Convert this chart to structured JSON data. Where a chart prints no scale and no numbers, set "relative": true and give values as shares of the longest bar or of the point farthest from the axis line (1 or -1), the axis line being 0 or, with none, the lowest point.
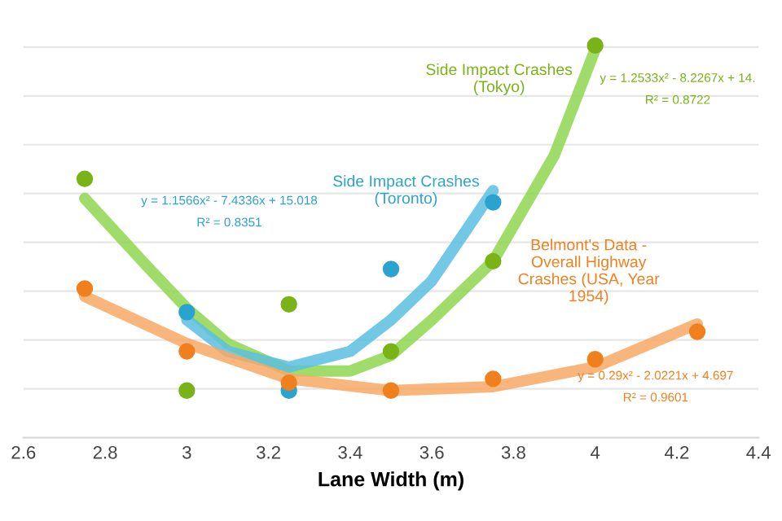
{
  "chart_data": {
    "type": "scatter",
    "relative": true,
    "xlabel": "Lane Width (m)",
    "xlim": [
      2.6,
      4.4
    ],
    "xticks": [
      2.6,
      2.8,
      3,
      3.2,
      3.4,
      3.6,
      3.8,
      4,
      4.2,
      4.4
    ],
    "grid": "y",
    "legend": false,
    "tick_labels": "x",
    "marker": "circle",
    "series": [
      {
        "name": "Side Impact Crashes\n(Tokyo)",
        "color": "#7ab317",
        "x": [
          2.75,
          3,
          3.25,
          3.5,
          3.75,
          4
        ],
        "values": [
          0.66,
          0.12,
          0.34,
          0.22,
          0.45,
          1.0
        ]
      },
      {
        "name": "Side Impact Crashes\n(Toronto)",
        "color": "#2ba3cf",
        "x": [
          3,
          3.25,
          3.5,
          3.75
        ],
        "values": [
          0.32,
          0.12,
          0.43,
          0.6
        ]
      },
      {
        "name": "Belmont's Data -\nOverall Highway\nCrashes (USA, Year\n1954)",
        "color": "#f07f1e",
        "x": [
          2.75,
          3,
          3.25,
          3.5,
          3.75,
          4,
          4.25
        ],
        "values": [
          0.38,
          0.22,
          0.14,
          0.12,
          0.15,
          0.2,
          0.27
        ]
      },
      {
        "type": "line",
        "color": "#8ed64f",
        "marker": "none",
        "x": [
          2.75,
          2.9,
          3.0,
          3.1,
          3.25,
          3.4,
          3.5,
          3.6,
          3.75,
          3.9,
          4.0
        ],
        "values": [
          0.61,
          0.44,
          0.33,
          0.24,
          0.17,
          0.17,
          0.21,
          0.3,
          0.45,
          0.72,
          0.99
        ]
      },
      {
        "type": "line",
        "color": "#5bbfe0",
        "marker": "none",
        "x": [
          3.0,
          3.1,
          3.25,
          3.4,
          3.5,
          3.6,
          3.75
        ],
        "values": [
          0.3,
          0.22,
          0.18,
          0.22,
          0.3,
          0.4,
          0.63
        ]
      },
      {
        "type": "line",
        "color": "#f7a865",
        "marker": "none",
        "x": [
          2.75,
          3.0,
          3.25,
          3.5,
          3.75,
          4.0,
          4.25
        ],
        "values": [
          0.36,
          0.24,
          0.15,
          0.12,
          0.13,
          0.18,
          0.29
        ]
      }
    ],
    "annotations": [
      "y = 1.2533x² - 8.2267x + 14.",
      "R² = 0.8722",
      "y = 1.1566x² - 7.4336x + 15.018",
      "R² = 0.8351",
      "y = 0.29x² - 2.0221x + 4.697",
      "R² = 0.9601"
    ]
  }
}
